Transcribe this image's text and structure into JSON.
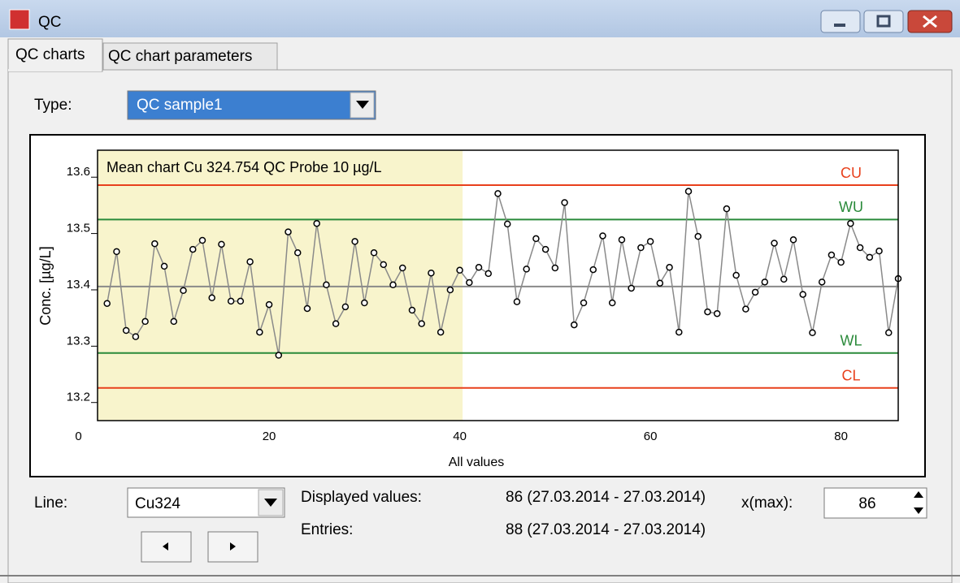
{
  "window": {
    "title": "QC"
  },
  "tabs": [
    "QC charts",
    "QC chart parameters"
  ],
  "controls": {
    "type_label": "Type:",
    "type_value": "QC sample1",
    "line_label": "Line:",
    "line_value": "Cu324",
    "displayed_label": "Displayed values:",
    "displayed_value": "86 (27.03.2014 - 27.03.2014)",
    "entries_label": "Entries:",
    "entries_value": "88 (27.03.2014 - 27.03.2014)",
    "xmax_label": "x(max):",
    "xmax_value": "86"
  },
  "chart_data": {
    "type": "line",
    "title": "Mean chart Cu 324.754 QC Probe 10 µg/L",
    "xlabel": "All values",
    "ylabel": "Conc. [µg/L]",
    "x": [
      3,
      4,
      5,
      6,
      7,
      8,
      9,
      10,
      11,
      12,
      13,
      14,
      15,
      16,
      17,
      18,
      19,
      20,
      21,
      22,
      23,
      24,
      25,
      26,
      27,
      28,
      29,
      30,
      31,
      32,
      33,
      34,
      35,
      36,
      37,
      38,
      39,
      40,
      41,
      42,
      43,
      44,
      45,
      46,
      47,
      48,
      49,
      50,
      51,
      52,
      53,
      54,
      55,
      56,
      57,
      58,
      59,
      60,
      61,
      62,
      63,
      64,
      65,
      66,
      67,
      68,
      69,
      70,
      71,
      72,
      73,
      74,
      75,
      76,
      77,
      78,
      79,
      80,
      81,
      82,
      83,
      84,
      85,
      86
    ],
    "values": [
      13.373,
      13.465,
      13.325,
      13.314,
      13.341,
      13.479,
      13.439,
      13.341,
      13.396,
      13.469,
      13.485,
      13.383,
      13.478,
      13.377,
      13.377,
      13.447,
      13.322,
      13.371,
      13.281,
      13.5,
      13.463,
      13.364,
      13.515,
      13.406,
      13.337,
      13.367,
      13.483,
      13.374,
      13.463,
      13.442,
      13.406,
      13.436,
      13.361,
      13.337,
      13.427,
      13.322,
      13.397,
      13.432,
      13.41,
      13.437,
      13.426,
      13.568,
      13.514,
      13.376,
      13.434,
      13.488,
      13.469,
      13.436,
      13.552,
      13.335,
      13.374,
      13.433,
      13.493,
      13.374,
      13.486,
      13.4,
      13.472,
      13.483,
      13.409,
      13.437,
      13.322,
      13.572,
      13.492,
      13.358,
      13.355,
      13.541,
      13.423,
      13.363,
      13.393,
      13.411,
      13.48,
      13.416,
      13.486,
      13.389,
      13.321,
      13.411,
      13.459,
      13.446,
      13.515,
      13.472,
      13.455,
      13.466,
      13.321,
      13.417
    ],
    "color": "#8a8a8a",
    "marker_color": "#000000",
    "xlim": [
      2,
      86
    ],
    "ylim": [
      13.165,
      13.645
    ],
    "xticks": [
      0,
      20,
      40,
      60,
      80
    ],
    "yticks": [
      13.2,
      13.3,
      13.4,
      13.5,
      13.6
    ],
    "shaded_xlim": [
      2,
      40.3
    ],
    "shade_color": "#f8f4cc",
    "center_line": {
      "value": 13.403,
      "color": "#8a8a8a"
    },
    "limits": [
      {
        "name": "CU",
        "value": 13.583,
        "color": "#e8401c"
      },
      {
        "name": "WU",
        "value": 13.522,
        "color": "#2a8a3a"
      },
      {
        "name": "WL",
        "value": 13.285,
        "color": "#2a8a3a"
      },
      {
        "name": "CL",
        "value": 13.223,
        "color": "#e8401c"
      }
    ]
  }
}
